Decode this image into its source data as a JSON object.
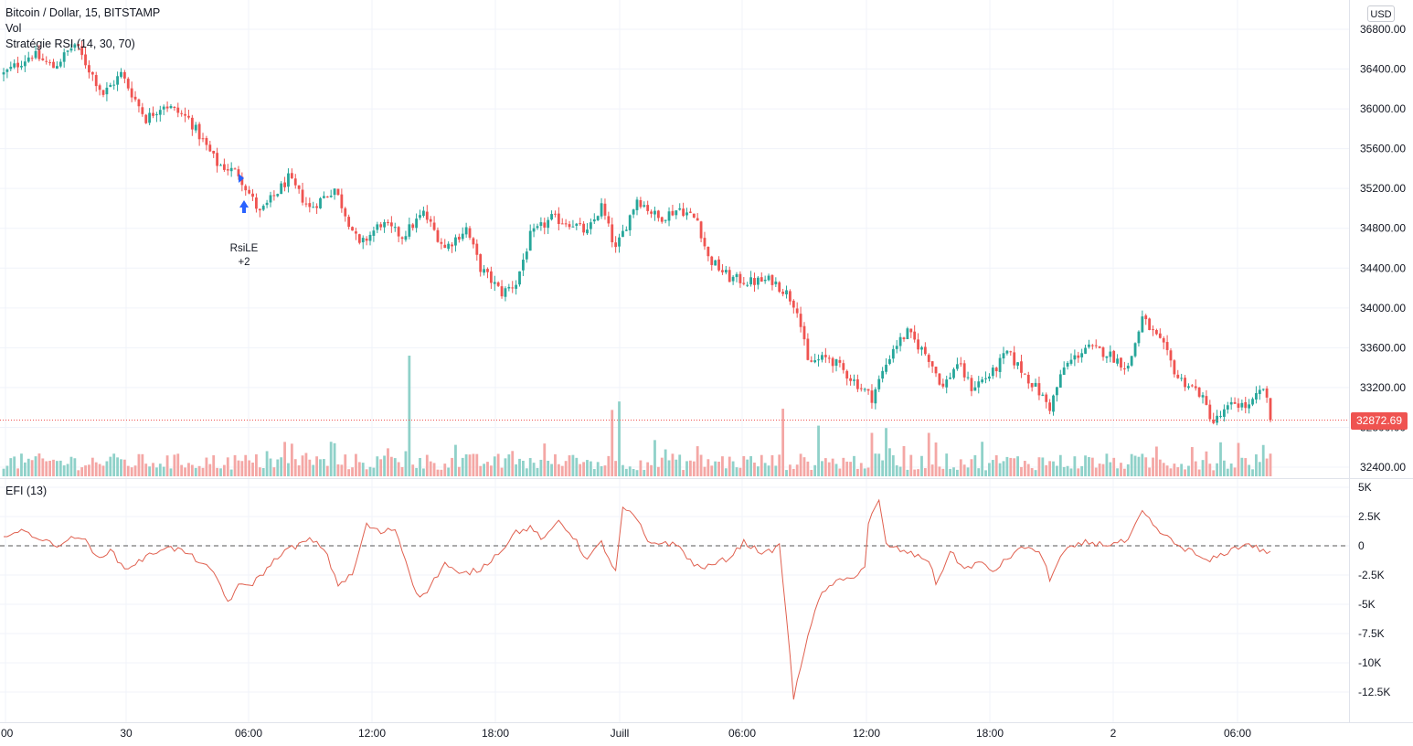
{
  "header": {
    "symbol_line": "Bitcoin / Dollar, 15, BITSTAMP",
    "volume_label": "Vol",
    "strategy_label": "Stratégie RSI (14, 30, 70)",
    "currency": "USD",
    "last_price": "32872.69"
  },
  "efi_panel": {
    "label": "EFI (13)"
  },
  "signal": {
    "name": "RsiLE",
    "qty": "+2"
  },
  "colors": {
    "up": "#26a69a",
    "down": "#ef5350",
    "up_volume": "#8fd1c9",
    "down_volume": "#f4a7a5",
    "efi_line": "#e0604f",
    "price_line": "#ef5350",
    "grid": "#f0f3fa",
    "signal_arrow": "#2962ff"
  },
  "chart_data": [
    {
      "type": "candlestick",
      "title": "Bitcoin / Dollar, 15, BITSTAMP",
      "xlabel": "",
      "ylabel": "",
      "y_ticks": [
        "36800.00",
        "36400.00",
        "36000.00",
        "35600.00",
        "35200.00",
        "34800.00",
        "34400.00",
        "34000.00",
        "33600.00",
        "33200.00",
        "32800.00",
        "32400.00"
      ],
      "ylim": [
        32300,
        36900
      ],
      "x_ticks": [
        ":00",
        "30",
        "06:00",
        "12:00",
        "18:00",
        "Juill",
        "06:00",
        "12:00",
        "18:00",
        "2",
        "06:00"
      ],
      "grid": true,
      "last_price": 32872.69,
      "close_path": [
        [
          0,
          36350
        ],
        [
          8,
          36550
        ],
        [
          14,
          36420
        ],
        [
          20,
          36650
        ],
        [
          28,
          36150
        ],
        [
          33,
          36350
        ],
        [
          40,
          35900
        ],
        [
          45,
          36050
        ],
        [
          52,
          35900
        ],
        [
          60,
          35450
        ],
        [
          66,
          35350
        ],
        [
          72,
          34950
        ],
        [
          80,
          35300
        ],
        [
          86,
          35000
        ],
        [
          93,
          35200
        ],
        [
          100,
          34620
        ],
        [
          106,
          34850
        ],
        [
          112,
          34720
        ],
        [
          118,
          34950
        ],
        [
          124,
          34600
        ],
        [
          130,
          34800
        ],
        [
          134,
          34400
        ],
        [
          140,
          34150
        ],
        [
          144,
          34250
        ],
        [
          148,
          34720
        ],
        [
          154,
          34900
        ],
        [
          160,
          34850
        ],
        [
          164,
          34750
        ],
        [
          168,
          35020
        ],
        [
          172,
          34580
        ],
        [
          178,
          35100
        ],
        [
          184,
          34900
        ],
        [
          190,
          35000
        ],
        [
          195,
          34880
        ],
        [
          198,
          34500
        ],
        [
          204,
          34300
        ],
        [
          210,
          34260
        ],
        [
          216,
          34280
        ],
        [
          220,
          34150
        ],
        [
          223,
          34000
        ],
        [
          226,
          33450
        ],
        [
          232,
          33500
        ],
        [
          238,
          33300
        ],
        [
          244,
          33100
        ],
        [
          250,
          33600
        ],
        [
          254,
          33750
        ],
        [
          260,
          33500
        ],
        [
          264,
          33200
        ],
        [
          268,
          33450
        ],
        [
          272,
          33200
        ],
        [
          278,
          33350
        ],
        [
          282,
          33550
        ],
        [
          290,
          33200
        ],
        [
          294,
          33000
        ],
        [
          298,
          33400
        ],
        [
          304,
          33600
        ],
        [
          310,
          33550
        ],
        [
          316,
          33400
        ],
        [
          320,
          33900
        ],
        [
          326,
          33600
        ],
        [
          330,
          33300
        ],
        [
          336,
          33150
        ],
        [
          340,
          32850
        ],
        [
          346,
          33050
        ],
        [
          350,
          33000
        ],
        [
          354,
          33200
        ],
        [
          356,
          32900
        ]
      ],
      "n_candles": 357
    },
    {
      "type": "bar",
      "title": "Vol",
      "note": "volume histogram overlaid at the bottom of the price pane; no numeric axis shown",
      "spike_positions": [
        [
          114,
          1.0
        ],
        [
          171,
          0.55
        ],
        [
          173,
          0.62
        ],
        [
          219,
          0.56
        ],
        [
          229,
          0.42
        ],
        [
          244,
          0.36
        ],
        [
          248,
          0.4
        ],
        [
          260,
          0.36
        ],
        [
          262,
          0.28
        ]
      ]
    },
    {
      "type": "line",
      "title": "EFI (13)",
      "y_ticks": [
        "5K",
        "2.5K",
        "0",
        "-2.5K",
        "-5K",
        "-7.5K",
        "-10K",
        "-12.5K"
      ],
      "ylim": [
        -13500,
        5500
      ],
      "zero_line": "dashed",
      "points": [
        [
          0,
          1000
        ],
        [
          6,
          1200
        ],
        [
          12,
          400
        ],
        [
          14,
          0
        ],
        [
          18,
          500
        ],
        [
          22,
          800
        ],
        [
          26,
          -1000
        ],
        [
          30,
          -400
        ],
        [
          34,
          -2000
        ],
        [
          40,
          -1000
        ],
        [
          45,
          -100
        ],
        [
          50,
          -400
        ],
        [
          56,
          -1500
        ],
        [
          60,
          -2800
        ],
        [
          63,
          -4800
        ],
        [
          66,
          -3500
        ],
        [
          70,
          -3200
        ],
        [
          74,
          -2000
        ],
        [
          78,
          -600
        ],
        [
          86,
          500
        ],
        [
          90,
          -200
        ],
        [
          94,
          -3300
        ],
        [
          98,
          -2500
        ],
        [
          102,
          1800
        ],
        [
          106,
          1100
        ],
        [
          110,
          1500
        ],
        [
          114,
          -2200
        ],
        [
          116,
          -4000
        ],
        [
          118,
          -4300
        ],
        [
          124,
          -1500
        ],
        [
          128,
          -2500
        ],
        [
          134,
          -2000
        ],
        [
          140,
          -300
        ],
        [
          144,
          1200
        ],
        [
          148,
          1500
        ],
        [
          152,
          500
        ],
        [
          156,
          2200
        ],
        [
          160,
          800
        ],
        [
          164,
          -1200
        ],
        [
          168,
          300
        ],
        [
          172,
          -2300
        ],
        [
          174,
          3200
        ],
        [
          178,
          2300
        ],
        [
          181,
          200
        ],
        [
          186,
          300
        ],
        [
          190,
          -100
        ],
        [
          194,
          -1700
        ],
        [
          198,
          -1800
        ],
        [
          204,
          -1000
        ],
        [
          208,
          300
        ],
        [
          214,
          -700
        ],
        [
          218,
          0
        ],
        [
          220,
          -6000
        ],
        [
          222,
          -13000
        ],
        [
          224,
          -10500
        ],
        [
          226,
          -7500
        ],
        [
          228,
          -5500
        ],
        [
          230,
          -4200
        ],
        [
          233,
          -3200
        ],
        [
          238,
          -2800
        ],
        [
          242,
          -1800
        ],
        [
          243,
          2000
        ],
        [
          246,
          3800
        ],
        [
          248,
          100
        ],
        [
          254,
          -600
        ],
        [
          260,
          -1200
        ],
        [
          262,
          -3300
        ],
        [
          266,
          -500
        ],
        [
          270,
          -2000
        ],
        [
          274,
          -1400
        ],
        [
          278,
          -2200
        ],
        [
          284,
          -600
        ],
        [
          288,
          0
        ],
        [
          292,
          -1000
        ],
        [
          294,
          -2800
        ],
        [
          298,
          -500
        ],
        [
          304,
          300
        ],
        [
          310,
          100
        ],
        [
          316,
          400
        ],
        [
          320,
          2900
        ],
        [
          324,
          1400
        ],
        [
          330,
          0
        ],
        [
          334,
          -500
        ],
        [
          338,
          -1400
        ],
        [
          342,
          -800
        ],
        [
          346,
          -200
        ],
        [
          350,
          200
        ],
        [
          354,
          -500
        ]
      ]
    }
  ]
}
